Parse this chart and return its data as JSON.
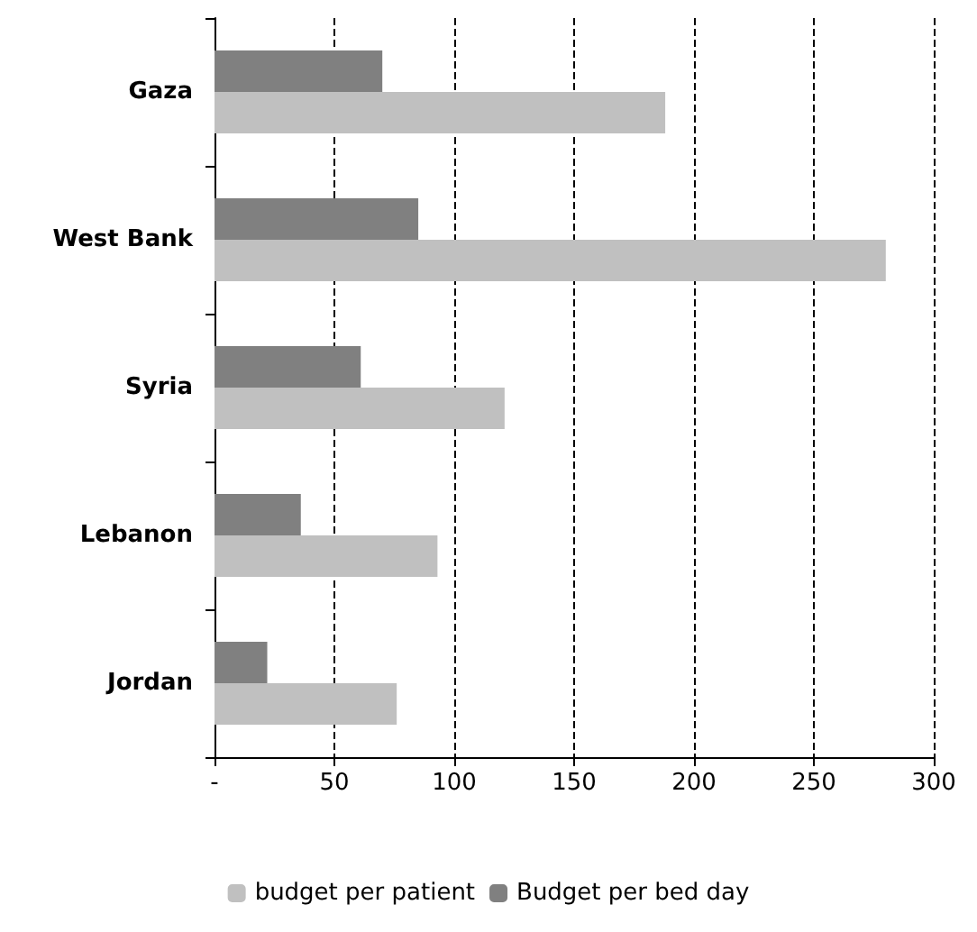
{
  "chart_data": {
    "type": "bar",
    "orientation": "horizontal",
    "categories": [
      "Gaza",
      "West Bank",
      "Syria",
      "Lebanon",
      "Jordan"
    ],
    "series": [
      {
        "name": "budget per patient",
        "color": "#c0c0c0",
        "values": [
          188,
          280,
          121,
          93,
          76
        ]
      },
      {
        "name": "Budget per bed day",
        "color": "#808080",
        "values": [
          70,
          85,
          61,
          36,
          22
        ]
      }
    ],
    "xlim": [
      0,
      300
    ],
    "xticks": [
      {
        "value": 0,
        "label": "-"
      },
      50,
      100,
      150,
      200,
      250,
      300
    ],
    "grid": "x",
    "line_style": "dashed",
    "legend": "bottom"
  }
}
